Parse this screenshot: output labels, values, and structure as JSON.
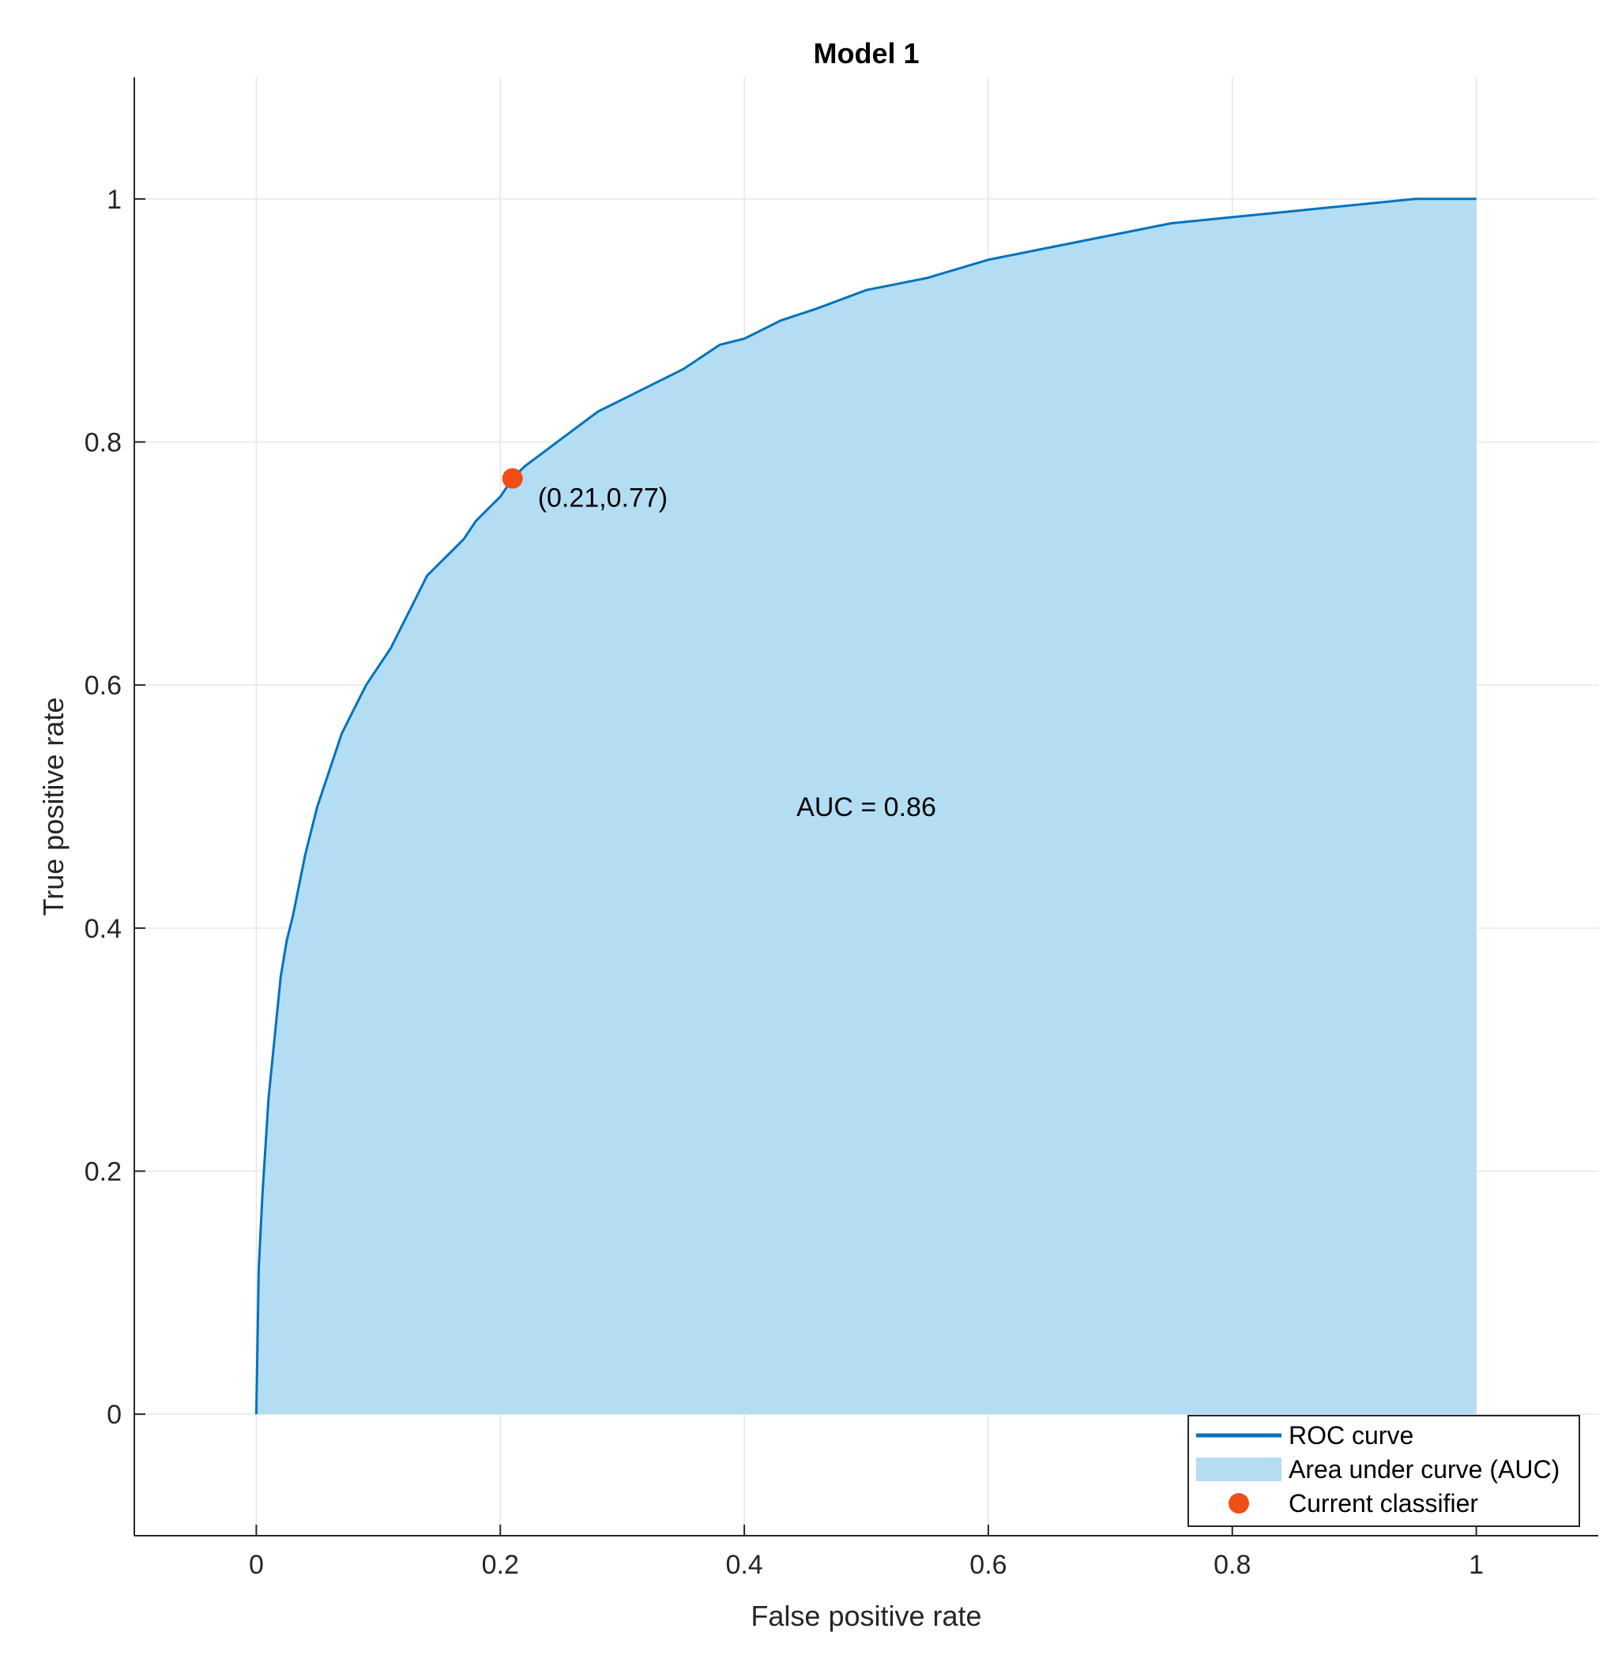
{
  "chart_data": {
    "type": "area",
    "title": "Model 1",
    "xlabel": "False positive rate",
    "ylabel": "True positive rate",
    "xlim": [
      -0.1,
      1.1
    ],
    "ylim": [
      -0.1,
      1.1
    ],
    "xticks": [
      0,
      0.2,
      0.4,
      0.6,
      0.8,
      1
    ],
    "yticks": [
      0,
      0.2,
      0.4,
      0.6,
      0.8,
      1
    ],
    "xtick_labels": [
      "0",
      "0.2",
      "0.4",
      "0.6",
      "0.8",
      "1"
    ],
    "ytick_labels": [
      "0",
      "0.2",
      "0.4",
      "0.6",
      "0.8",
      "1"
    ],
    "grid": true,
    "colors": {
      "roc_line": "#0072BD",
      "auc_fill": "#B3DDF2",
      "classifier_marker": "#F04E16",
      "axis": "#262626",
      "grid": "#e6e6e6"
    },
    "series": [
      {
        "name": "ROC curve",
        "x": [
          0,
          0.002,
          0.005,
          0.01,
          0.015,
          0.02,
          0.025,
          0.03,
          0.04,
          0.05,
          0.06,
          0.07,
          0.08,
          0.09,
          0.1,
          0.11,
          0.12,
          0.13,
          0.14,
          0.15,
          0.16,
          0.17,
          0.18,
          0.19,
          0.2,
          0.21,
          0.22,
          0.24,
          0.26,
          0.28,
          0.3,
          0.32,
          0.35,
          0.38,
          0.4,
          0.43,
          0.46,
          0.5,
          0.55,
          0.6,
          0.65,
          0.7,
          0.75,
          0.8,
          0.85,
          0.9,
          0.95,
          1.0
        ],
        "y": [
          0,
          0.12,
          0.18,
          0.26,
          0.31,
          0.36,
          0.39,
          0.41,
          0.46,
          0.5,
          0.53,
          0.56,
          0.58,
          0.6,
          0.615,
          0.63,
          0.65,
          0.67,
          0.69,
          0.7,
          0.71,
          0.72,
          0.735,
          0.745,
          0.755,
          0.77,
          0.78,
          0.795,
          0.81,
          0.825,
          0.835,
          0.845,
          0.86,
          0.88,
          0.885,
          0.9,
          0.91,
          0.925,
          0.935,
          0.95,
          0.96,
          0.97,
          0.98,
          0.985,
          0.99,
          0.995,
          1.0,
          1.0
        ]
      }
    ],
    "auc": {
      "legend_label": "Area under curve (AUC)",
      "text": "AUC = 0.86",
      "text_x": 0.5,
      "text_y": 0.5
    },
    "current_classifier": {
      "legend_label": "Current classifier",
      "x": 0.21,
      "y": 0.77,
      "label": "(0.21,0.77)"
    },
    "legend": {
      "position": "bottom-right",
      "entries": [
        "ROC curve",
        "Area under curve (AUC)",
        "Current classifier"
      ]
    }
  }
}
